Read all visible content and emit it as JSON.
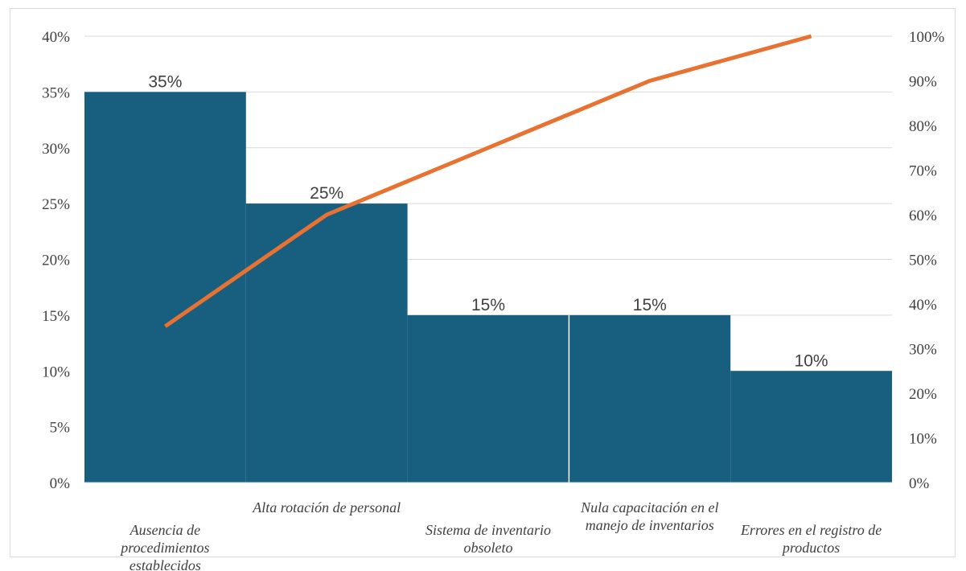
{
  "chart_data": {
    "type": "bar",
    "title": "",
    "categories": [
      "Ausencia de procedimientos establecidos",
      "Alta rotación de personal",
      "Sistema de inventario obsoleto",
      "Nula capacitación en el manejo de inventarios",
      "Errores en el registro de productos"
    ],
    "category_label_lines": [
      [
        "Ausencia de",
        "procedimientos",
        "establecidos"
      ],
      [
        "Alta rotación de personal"
      ],
      [
        "Sistema de inventario",
        "obsoleto"
      ],
      [
        "Nula capacitación en el",
        "manejo de inventarios"
      ],
      [
        "Errores en el registro de",
        "productos"
      ]
    ],
    "series": [
      {
        "type": "bar",
        "axis": "left",
        "values": [
          35,
          25,
          15,
          15,
          10
        ],
        "data_labels": [
          "35%",
          "25%",
          "15%",
          "15%",
          "10%"
        ],
        "color": "#175e7f"
      },
      {
        "type": "line",
        "axis": "right",
        "values": [
          35,
          60,
          75,
          90,
          100
        ],
        "color": "#e87231"
      }
    ],
    "ylim": [
      0,
      40
    ],
    "y_ticks": [
      "0%",
      "5%",
      "10%",
      "15%",
      "20%",
      "25%",
      "30%",
      "35%",
      "40%"
    ],
    "y2lim": [
      0,
      100
    ],
    "y2_ticks": [
      "0%",
      "10%",
      "20%",
      "30%",
      "40%",
      "50%",
      "60%",
      "70%",
      "80%",
      "90%",
      "100%"
    ],
    "grid": true,
    "legend": "none"
  }
}
